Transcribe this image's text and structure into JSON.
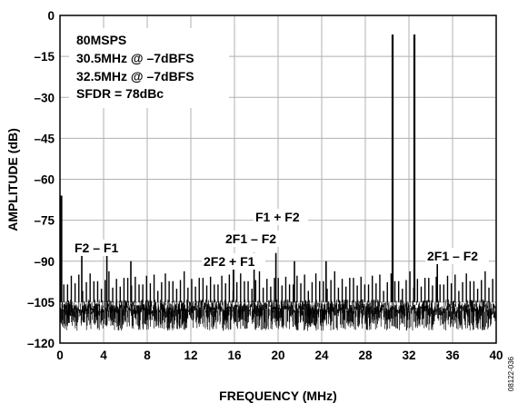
{
  "figure_id": "08122-036",
  "chart_data": {
    "type": "line",
    "xlabel": "FREQUENCY (MHz)",
    "ylabel": "AMPLITUDE (dB)",
    "xlim": [
      0,
      40
    ],
    "ylim": [
      -120,
      0
    ],
    "xticks": [
      0,
      4,
      8,
      12,
      16,
      20,
      24,
      28,
      32,
      36,
      40
    ],
    "yticks": [
      0,
      -15,
      -30,
      -45,
      -60,
      -75,
      -90,
      -105,
      -120
    ],
    "ytick_labels": [
      "0",
      "–15",
      "–30",
      "–45",
      "–60",
      "–75",
      "–90",
      "–105",
      "–120"
    ],
    "grid": true,
    "info_box": [
      "80MSPS",
      "30.5MHz @ –7dBFS",
      "32.5MHz @ –7dBFS",
      "SFDR = 78dBc"
    ],
    "noise_floor_db": -105,
    "fundamentals": [
      {
        "x": 30.5,
        "y": -7
      },
      {
        "x": 32.5,
        "y": -7
      }
    ],
    "dc_component": {
      "x": 0,
      "y": -66
    },
    "spurs": [
      {
        "x": 2.0,
        "y": -87
      },
      {
        "x": 4.3,
        "y": -87
      },
      {
        "x": 6.5,
        "y": -90
      },
      {
        "x": 15.9,
        "y": -89
      },
      {
        "x": 17.8,
        "y": -87
      },
      {
        "x": 19.8,
        "y": -87
      },
      {
        "x": 21.5,
        "y": -90
      },
      {
        "x": 24.4,
        "y": -90
      },
      {
        "x": 34.6,
        "y": -90
      }
    ],
    "annotations": [
      {
        "label": "F2 – F1",
        "x": 2.0,
        "y": -87
      },
      {
        "label": "F1 + F2",
        "x": 19.8,
        "y": -87
      },
      {
        "label": "2F1 – F2",
        "x": 17.8,
        "y": -87
      },
      {
        "label": "2F2 + F1",
        "x": 15.9,
        "y": -89
      },
      {
        "label": "2F1 – F2",
        "x": 34.6,
        "y": -90
      }
    ]
  }
}
